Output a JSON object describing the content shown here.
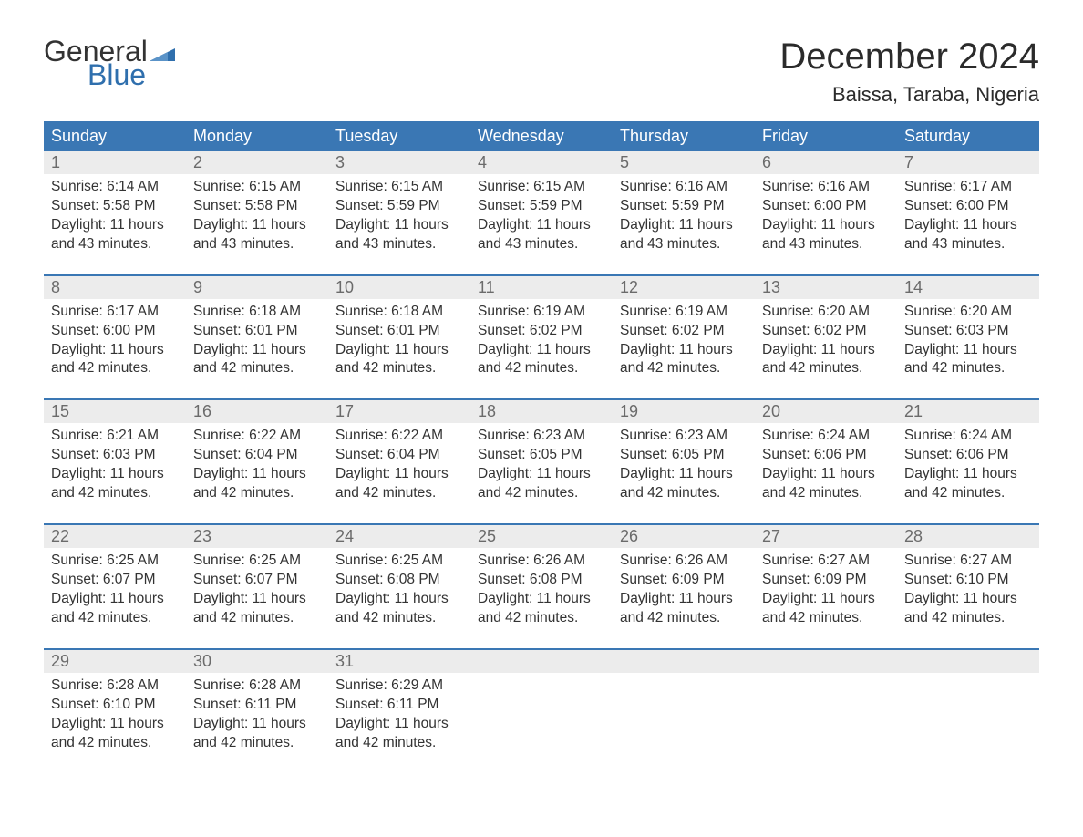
{
  "logo": {
    "general": "General",
    "blue": "Blue"
  },
  "title": "December 2024",
  "location": "Baissa, Taraba, Nigeria",
  "colors": {
    "header_bg": "#3a77b4",
    "header_text": "#ffffff",
    "date_bg": "#ececec",
    "date_text": "#6b6b6b",
    "body_text": "#333333",
    "logo_blue": "#2f6fad",
    "week_border": "#3a77b4",
    "page_bg": "#ffffff"
  },
  "typography": {
    "title_fontsize": 40,
    "location_fontsize": 22,
    "dayheader_fontsize": 18,
    "datenum_fontsize": 18,
    "cell_fontsize": 15.5,
    "logo_fontsize": 32
  },
  "day_names": [
    "Sunday",
    "Monday",
    "Tuesday",
    "Wednesday",
    "Thursday",
    "Friday",
    "Saturday"
  ],
  "weeks": [
    {
      "days": [
        {
          "date": "1",
          "sunrise": "Sunrise: 6:14 AM",
          "sunset": "Sunset: 5:58 PM",
          "dl1": "Daylight: 11 hours",
          "dl2": "and 43 minutes."
        },
        {
          "date": "2",
          "sunrise": "Sunrise: 6:15 AM",
          "sunset": "Sunset: 5:58 PM",
          "dl1": "Daylight: 11 hours",
          "dl2": "and 43 minutes."
        },
        {
          "date": "3",
          "sunrise": "Sunrise: 6:15 AM",
          "sunset": "Sunset: 5:59 PM",
          "dl1": "Daylight: 11 hours",
          "dl2": "and 43 minutes."
        },
        {
          "date": "4",
          "sunrise": "Sunrise: 6:15 AM",
          "sunset": "Sunset: 5:59 PM",
          "dl1": "Daylight: 11 hours",
          "dl2": "and 43 minutes."
        },
        {
          "date": "5",
          "sunrise": "Sunrise: 6:16 AM",
          "sunset": "Sunset: 5:59 PM",
          "dl1": "Daylight: 11 hours",
          "dl2": "and 43 minutes."
        },
        {
          "date": "6",
          "sunrise": "Sunrise: 6:16 AM",
          "sunset": "Sunset: 6:00 PM",
          "dl1": "Daylight: 11 hours",
          "dl2": "and 43 minutes."
        },
        {
          "date": "7",
          "sunrise": "Sunrise: 6:17 AM",
          "sunset": "Sunset: 6:00 PM",
          "dl1": "Daylight: 11 hours",
          "dl2": "and 43 minutes."
        }
      ]
    },
    {
      "days": [
        {
          "date": "8",
          "sunrise": "Sunrise: 6:17 AM",
          "sunset": "Sunset: 6:00 PM",
          "dl1": "Daylight: 11 hours",
          "dl2": "and 42 minutes."
        },
        {
          "date": "9",
          "sunrise": "Sunrise: 6:18 AM",
          "sunset": "Sunset: 6:01 PM",
          "dl1": "Daylight: 11 hours",
          "dl2": "and 42 minutes."
        },
        {
          "date": "10",
          "sunrise": "Sunrise: 6:18 AM",
          "sunset": "Sunset: 6:01 PM",
          "dl1": "Daylight: 11 hours",
          "dl2": "and 42 minutes."
        },
        {
          "date": "11",
          "sunrise": "Sunrise: 6:19 AM",
          "sunset": "Sunset: 6:02 PM",
          "dl1": "Daylight: 11 hours",
          "dl2": "and 42 minutes."
        },
        {
          "date": "12",
          "sunrise": "Sunrise: 6:19 AM",
          "sunset": "Sunset: 6:02 PM",
          "dl1": "Daylight: 11 hours",
          "dl2": "and 42 minutes."
        },
        {
          "date": "13",
          "sunrise": "Sunrise: 6:20 AM",
          "sunset": "Sunset: 6:02 PM",
          "dl1": "Daylight: 11 hours",
          "dl2": "and 42 minutes."
        },
        {
          "date": "14",
          "sunrise": "Sunrise: 6:20 AM",
          "sunset": "Sunset: 6:03 PM",
          "dl1": "Daylight: 11 hours",
          "dl2": "and 42 minutes."
        }
      ]
    },
    {
      "days": [
        {
          "date": "15",
          "sunrise": "Sunrise: 6:21 AM",
          "sunset": "Sunset: 6:03 PM",
          "dl1": "Daylight: 11 hours",
          "dl2": "and 42 minutes."
        },
        {
          "date": "16",
          "sunrise": "Sunrise: 6:22 AM",
          "sunset": "Sunset: 6:04 PM",
          "dl1": "Daylight: 11 hours",
          "dl2": "and 42 minutes."
        },
        {
          "date": "17",
          "sunrise": "Sunrise: 6:22 AM",
          "sunset": "Sunset: 6:04 PM",
          "dl1": "Daylight: 11 hours",
          "dl2": "and 42 minutes."
        },
        {
          "date": "18",
          "sunrise": "Sunrise: 6:23 AM",
          "sunset": "Sunset: 6:05 PM",
          "dl1": "Daylight: 11 hours",
          "dl2": "and 42 minutes."
        },
        {
          "date": "19",
          "sunrise": "Sunrise: 6:23 AM",
          "sunset": "Sunset: 6:05 PM",
          "dl1": "Daylight: 11 hours",
          "dl2": "and 42 minutes."
        },
        {
          "date": "20",
          "sunrise": "Sunrise: 6:24 AM",
          "sunset": "Sunset: 6:06 PM",
          "dl1": "Daylight: 11 hours",
          "dl2": "and 42 minutes."
        },
        {
          "date": "21",
          "sunrise": "Sunrise: 6:24 AM",
          "sunset": "Sunset: 6:06 PM",
          "dl1": "Daylight: 11 hours",
          "dl2": "and 42 minutes."
        }
      ]
    },
    {
      "days": [
        {
          "date": "22",
          "sunrise": "Sunrise: 6:25 AM",
          "sunset": "Sunset: 6:07 PM",
          "dl1": "Daylight: 11 hours",
          "dl2": "and 42 minutes."
        },
        {
          "date": "23",
          "sunrise": "Sunrise: 6:25 AM",
          "sunset": "Sunset: 6:07 PM",
          "dl1": "Daylight: 11 hours",
          "dl2": "and 42 minutes."
        },
        {
          "date": "24",
          "sunrise": "Sunrise: 6:25 AM",
          "sunset": "Sunset: 6:08 PM",
          "dl1": "Daylight: 11 hours",
          "dl2": "and 42 minutes."
        },
        {
          "date": "25",
          "sunrise": "Sunrise: 6:26 AM",
          "sunset": "Sunset: 6:08 PM",
          "dl1": "Daylight: 11 hours",
          "dl2": "and 42 minutes."
        },
        {
          "date": "26",
          "sunrise": "Sunrise: 6:26 AM",
          "sunset": "Sunset: 6:09 PM",
          "dl1": "Daylight: 11 hours",
          "dl2": "and 42 minutes."
        },
        {
          "date": "27",
          "sunrise": "Sunrise: 6:27 AM",
          "sunset": "Sunset: 6:09 PM",
          "dl1": "Daylight: 11 hours",
          "dl2": "and 42 minutes."
        },
        {
          "date": "28",
          "sunrise": "Sunrise: 6:27 AM",
          "sunset": "Sunset: 6:10 PM",
          "dl1": "Daylight: 11 hours",
          "dl2": "and 42 minutes."
        }
      ]
    },
    {
      "days": [
        {
          "date": "29",
          "sunrise": "Sunrise: 6:28 AM",
          "sunset": "Sunset: 6:10 PM",
          "dl1": "Daylight: 11 hours",
          "dl2": "and 42 minutes."
        },
        {
          "date": "30",
          "sunrise": "Sunrise: 6:28 AM",
          "sunset": "Sunset: 6:11 PM",
          "dl1": "Daylight: 11 hours",
          "dl2": "and 42 minutes."
        },
        {
          "date": "31",
          "sunrise": "Sunrise: 6:29 AM",
          "sunset": "Sunset: 6:11 PM",
          "dl1": "Daylight: 11 hours",
          "dl2": "and 42 minutes."
        },
        null,
        null,
        null,
        null
      ]
    }
  ]
}
